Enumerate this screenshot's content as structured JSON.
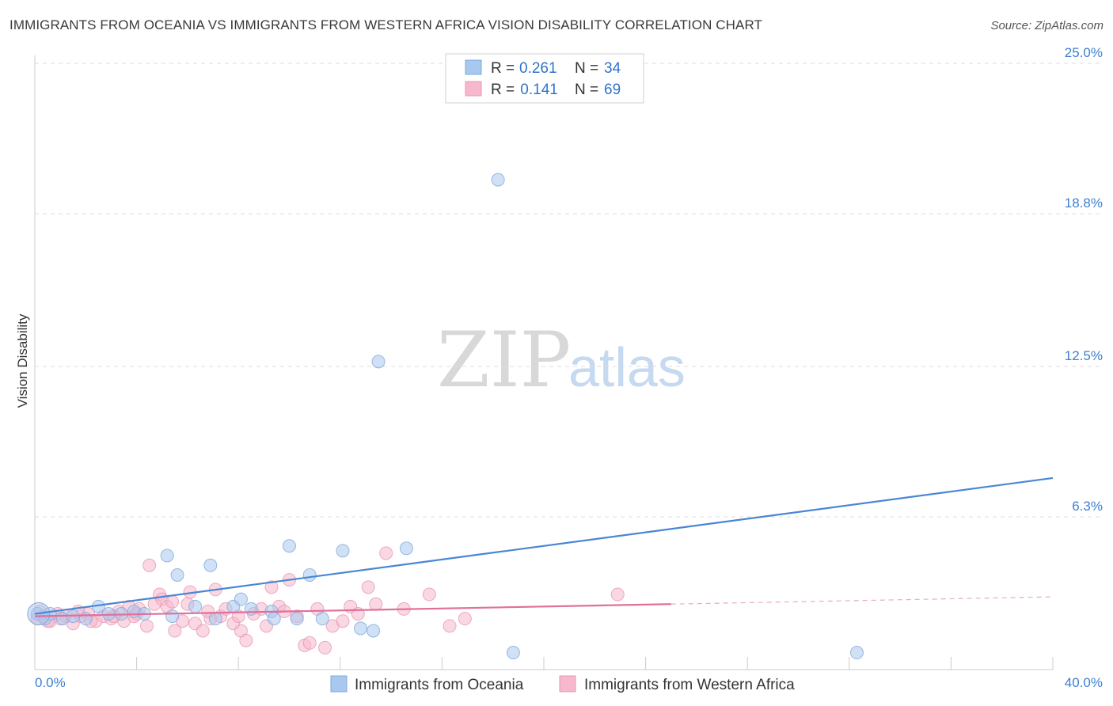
{
  "header": {
    "title": "IMMIGRANTS FROM OCEANIA VS IMMIGRANTS FROM WESTERN AFRICA VISION DISABILITY CORRELATION CHART",
    "source": "Source: ZipAtlas.com"
  },
  "watermark": {
    "zip": "ZIP",
    "atlas": "atlas"
  },
  "legend_top": {
    "rows": [
      {
        "r_label": "R = ",
        "r_value": "0.261",
        "n_label": "N = ",
        "n_value": "34",
        "color": "#a9c8ef"
      },
      {
        "r_label": "R = ",
        "r_value": " 0.141",
        "n_label": "N = ",
        "n_value": "69",
        "color": "#f6b8cc"
      }
    ]
  },
  "legend_bottom": [
    {
      "label": "Immigrants from Oceania",
      "color": "#a9c8ef"
    },
    {
      "label": "Immigrants from Western Africa",
      "color": "#f6b8cc"
    }
  ],
  "chart_data": {
    "type": "scatter",
    "title": "IMMIGRANTS FROM OCEANIA VS IMMIGRANTS FROM WESTERN AFRICA VISION DISABILITY CORRELATION CHART",
    "xlabel": "",
    "ylabel": "Vision Disability",
    "xlim": [
      0,
      40
    ],
    "ylim": [
      0,
      25
    ],
    "x_tick_labels": [
      "0.0%",
      "40.0%"
    ],
    "y_ticks": [
      6.3,
      12.5,
      18.8,
      25.0
    ],
    "y_tick_labels": [
      "6.3%",
      "12.5%",
      "18.8%",
      "25.0%"
    ],
    "grid": true,
    "series": [
      {
        "name": "Immigrants from Oceania",
        "color": "#4a86d4",
        "fill": "#a9c8ef",
        "R": 0.261,
        "N": 34,
        "trend": {
          "x": [
            0,
            40
          ],
          "y": [
            2.3,
            7.9
          ]
        },
        "points": [
          [
            0.1,
            2.3
          ],
          [
            0.4,
            2.1
          ],
          [
            0.6,
            2.3
          ],
          [
            1.1,
            2.1
          ],
          [
            1.5,
            2.2
          ],
          [
            2.0,
            2.1
          ],
          [
            2.5,
            2.6
          ],
          [
            2.9,
            2.3
          ],
          [
            3.4,
            2.3
          ],
          [
            3.9,
            2.4
          ],
          [
            4.3,
            2.3
          ],
          [
            5.4,
            2.2
          ],
          [
            5.2,
            4.7
          ],
          [
            5.6,
            3.9
          ],
          [
            6.3,
            2.6
          ],
          [
            6.9,
            4.3
          ],
          [
            7.1,
            2.1
          ],
          [
            7.8,
            2.6
          ],
          [
            8.1,
            2.9
          ],
          [
            8.5,
            2.5
          ],
          [
            9.3,
            2.4
          ],
          [
            9.4,
            2.1
          ],
          [
            10.0,
            5.1
          ],
          [
            10.3,
            2.1
          ],
          [
            10.8,
            3.9
          ],
          [
            11.3,
            2.1
          ],
          [
            12.1,
            4.9
          ],
          [
            12.8,
            1.7
          ],
          [
            13.3,
            1.6
          ],
          [
            13.5,
            12.7
          ],
          [
            14.6,
            5.0
          ],
          [
            18.2,
            20.2
          ],
          [
            18.8,
            0.7
          ],
          [
            32.3,
            0.7
          ]
        ]
      },
      {
        "name": "Immigrants from Western Africa",
        "color": "#e0709a",
        "fill": "#f6b8cc",
        "R": 0.141,
        "N": 69,
        "trend": {
          "x": [
            0,
            25
          ],
          "y": [
            2.2,
            2.7
          ]
        },
        "trend_dashed": {
          "x": [
            25,
            40
          ],
          "y": [
            2.7,
            3.0
          ]
        },
        "points": [
          [
            0.1,
            2.1
          ],
          [
            0.3,
            2.2
          ],
          [
            0.6,
            2.0
          ],
          [
            0.9,
            2.3
          ],
          [
            1.2,
            2.2
          ],
          [
            1.5,
            1.9
          ],
          [
            1.8,
            2.2
          ],
          [
            2.1,
            2.3
          ],
          [
            2.4,
            2.0
          ],
          [
            2.7,
            2.2
          ],
          [
            3.0,
            2.1
          ],
          [
            3.3,
            2.4
          ],
          [
            3.5,
            2.0
          ],
          [
            3.7,
            2.6
          ],
          [
            3.9,
            2.2
          ],
          [
            4.1,
            2.5
          ],
          [
            4.4,
            1.8
          ],
          [
            4.5,
            4.3
          ],
          [
            4.7,
            2.7
          ],
          [
            4.9,
            3.1
          ],
          [
            5.0,
            2.9
          ],
          [
            5.2,
            2.6
          ],
          [
            5.4,
            2.8
          ],
          [
            5.5,
            1.6
          ],
          [
            5.8,
            2.0
          ],
          [
            6.0,
            2.7
          ],
          [
            6.1,
            3.2
          ],
          [
            6.3,
            1.9
          ],
          [
            6.6,
            1.6
          ],
          [
            6.9,
            2.1
          ],
          [
            7.1,
            3.3
          ],
          [
            7.3,
            2.2
          ],
          [
            7.5,
            2.5
          ],
          [
            7.8,
            1.9
          ],
          [
            8.1,
            1.6
          ],
          [
            8.3,
            1.2
          ],
          [
            8.6,
            2.3
          ],
          [
            8.9,
            2.5
          ],
          [
            9.1,
            1.8
          ],
          [
            9.3,
            3.4
          ],
          [
            9.6,
            2.6
          ],
          [
            9.8,
            2.4
          ],
          [
            10.0,
            3.7
          ],
          [
            10.3,
            2.2
          ],
          [
            10.6,
            1.0
          ],
          [
            10.8,
            1.1
          ],
          [
            11.1,
            2.5
          ],
          [
            11.4,
            0.9
          ],
          [
            11.7,
            1.8
          ],
          [
            12.1,
            2.0
          ],
          [
            12.4,
            2.6
          ],
          [
            12.7,
            2.3
          ],
          [
            13.1,
            3.4
          ],
          [
            13.4,
            2.7
          ],
          [
            13.8,
            4.8
          ],
          [
            14.5,
            2.5
          ],
          [
            15.5,
            3.1
          ],
          [
            16.3,
            1.8
          ],
          [
            16.9,
            2.1
          ],
          [
            22.9,
            3.1
          ],
          [
            0.2,
            2.4
          ],
          [
            0.5,
            2.0
          ],
          [
            1.0,
            2.1
          ],
          [
            1.7,
            2.4
          ],
          [
            2.2,
            2.0
          ],
          [
            3.1,
            2.2
          ],
          [
            4.0,
            2.3
          ],
          [
            6.8,
            2.4
          ],
          [
            8.0,
            2.2
          ]
        ]
      }
    ]
  }
}
